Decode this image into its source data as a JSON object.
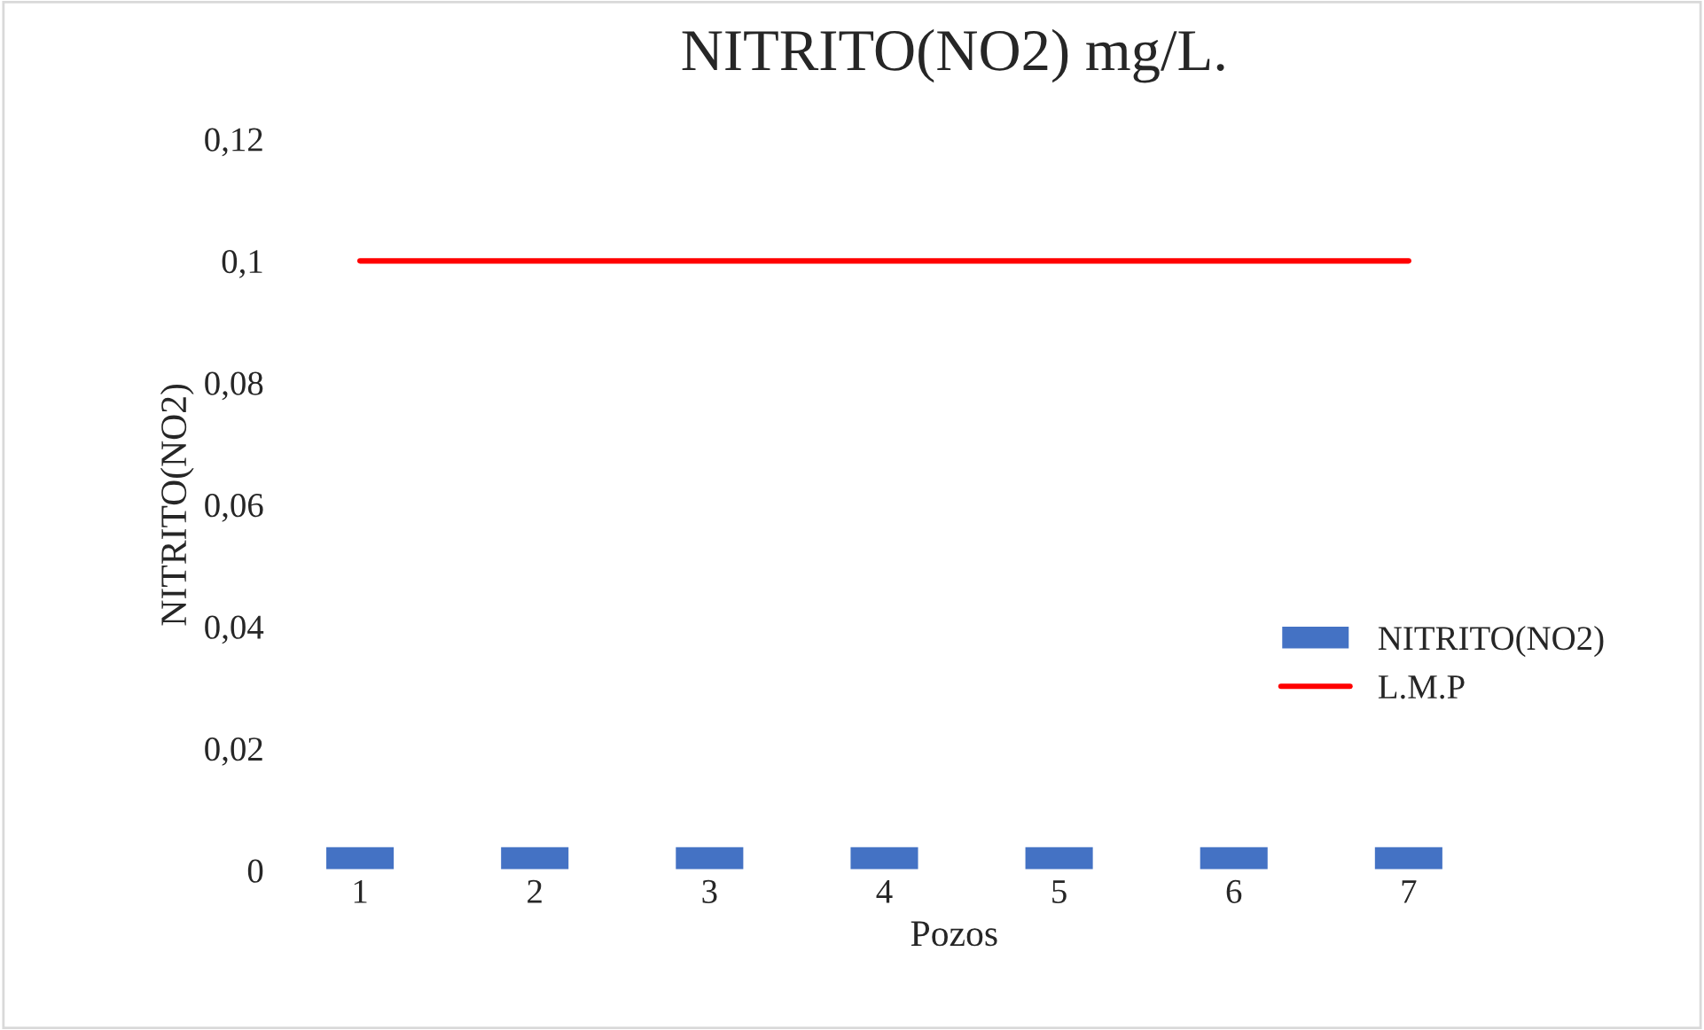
{
  "chart_data": {
    "type": "bar",
    "title": "NITRITO(NO2) mg/L.",
    "xlabel": "Pozos",
    "ylabel": "NITRITO(NO2)",
    "categories": [
      "1",
      "2",
      "3",
      "4",
      "5",
      "6",
      "7"
    ],
    "series": [
      {
        "name": "NITRITO(NO2)",
        "color": "#4472c4",
        "values": [
          0.004,
          0.004,
          0.004,
          0.004,
          0.004,
          0.004,
          0.004
        ]
      },
      {
        "name": "L.M.P",
        "type": "line",
        "color": "#ff0000",
        "values": [
          0.1,
          0.1,
          0.1,
          0.1,
          0.1,
          0.1,
          0.1
        ]
      }
    ],
    "ylim": [
      0,
      0.12
    ],
    "yticks": [
      {
        "value": 0,
        "label": "0"
      },
      {
        "value": 0.02,
        "label": "0,02"
      },
      {
        "value": 0.04,
        "label": "0,04"
      },
      {
        "value": 0.06,
        "label": "0,06"
      },
      {
        "value": 0.08,
        "label": "0,08"
      },
      {
        "value": 0.1,
        "label": "0,1"
      },
      {
        "value": 0.12,
        "label": "0,12"
      }
    ],
    "grid": false,
    "legend": "right"
  }
}
